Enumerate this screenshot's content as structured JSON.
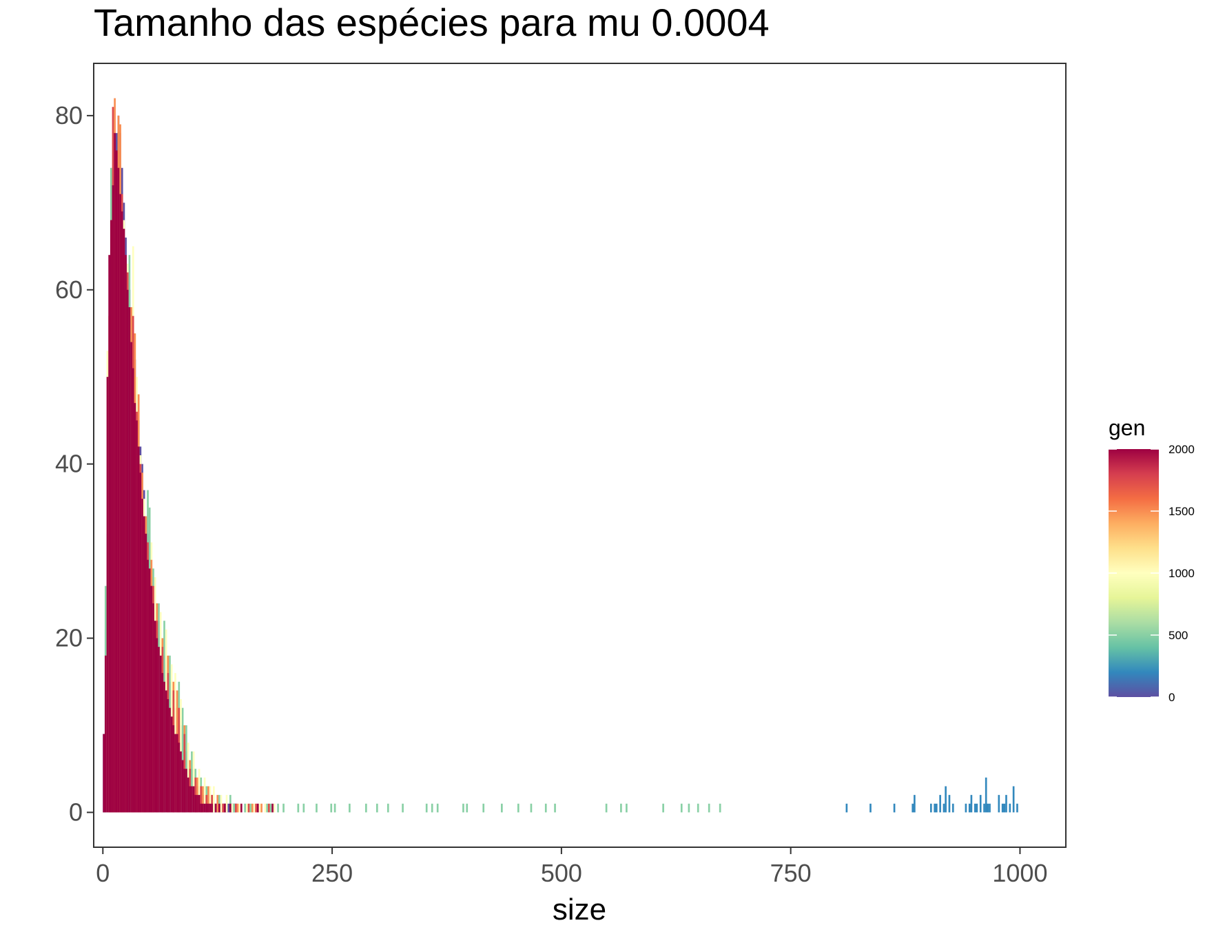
{
  "chart_data": {
    "type": "bar",
    "title": "Tamanho das espécies para mu 0.0004",
    "xlabel": "size",
    "ylabel": "",
    "xlim": [
      -10,
      1050
    ],
    "ylim": [
      -4,
      86
    ],
    "x_ticks": [
      0,
      250,
      500,
      750,
      1000
    ],
    "x_tick_labels": [
      "0",
      "250",
      "500",
      "750",
      "1000"
    ],
    "y_ticks": [
      0,
      20,
      40,
      60,
      80
    ],
    "y_tick_labels": [
      "0",
      "20",
      "40",
      "60",
      "80"
    ],
    "grid": false,
    "bar_width": 2,
    "legend": {
      "title": "gen",
      "type": "colorbar",
      "placement": "right",
      "range": [
        0,
        2000
      ],
      "ticks": [
        0,
        500,
        1000,
        1500,
        2000
      ],
      "tick_labels": [
        "0",
        "500",
        "1000",
        "1500",
        "2000"
      ],
      "palette": [
        "#5E4FA2",
        "#3288BD",
        "#66C2A5",
        "#ABDDA4",
        "#E6F598",
        "#FFFFBF",
        "#FEE08B",
        "#FDAE61",
        "#F46D43",
        "#D53E4F",
        "#9E0142"
      ]
    },
    "series": [
      {
        "gen": 0,
        "points": [
          [
            1,
            9
          ],
          [
            3,
            21
          ],
          [
            5,
            32
          ],
          [
            7,
            45
          ],
          [
            9,
            60
          ],
          [
            11,
            66
          ],
          [
            13,
            72
          ],
          [
            15,
            78
          ],
          [
            17,
            80
          ],
          [
            19,
            78
          ],
          [
            21,
            74
          ],
          [
            23,
            70
          ],
          [
            25,
            66
          ],
          [
            27,
            62
          ],
          [
            29,
            60
          ],
          [
            31,
            58
          ],
          [
            33,
            55
          ],
          [
            35,
            52
          ],
          [
            37,
            48
          ],
          [
            39,
            45
          ],
          [
            41,
            42
          ],
          [
            43,
            40
          ],
          [
            45,
            37
          ],
          [
            47,
            34
          ],
          [
            49,
            32
          ],
          [
            51,
            30
          ],
          [
            53,
            28
          ],
          [
            55,
            27
          ],
          [
            57,
            25
          ],
          [
            59,
            24
          ],
          [
            61,
            22
          ],
          [
            63,
            21
          ],
          [
            65,
            20
          ],
          [
            67,
            18
          ],
          [
            69,
            17
          ],
          [
            71,
            16
          ],
          [
            73,
            15
          ],
          [
            75,
            14
          ],
          [
            77,
            13
          ],
          [
            79,
            12
          ],
          [
            81,
            11
          ],
          [
            83,
            11
          ],
          [
            85,
            10
          ],
          [
            87,
            9
          ],
          [
            89,
            8
          ],
          [
            91,
            7
          ],
          [
            93,
            6
          ],
          [
            95,
            5
          ],
          [
            97,
            5
          ],
          [
            99,
            4
          ],
          [
            101,
            4
          ],
          [
            103,
            3
          ],
          [
            105,
            3
          ],
          [
            107,
            3
          ],
          [
            109,
            2
          ],
          [
            111,
            2
          ],
          [
            113,
            2
          ],
          [
            115,
            2
          ],
          [
            117,
            2
          ],
          [
            119,
            1
          ],
          [
            121,
            1
          ],
          [
            123,
            1
          ],
          [
            125,
            1
          ],
          [
            127,
            1
          ],
          [
            129,
            1
          ],
          [
            131,
            1
          ],
          [
            133,
            1
          ],
          [
            135,
            1
          ],
          [
            137,
            1
          ],
          [
            139,
            1
          ],
          [
            141,
            1
          ],
          [
            143,
            1
          ],
          [
            145,
            1
          ]
        ]
      },
      {
        "gen": 500,
        "points": [
          [
            3,
            26
          ],
          [
            7,
            52
          ],
          [
            9,
            74
          ],
          [
            13,
            73
          ],
          [
            21,
            66
          ],
          [
            29,
            64
          ],
          [
            49,
            37
          ],
          [
            51,
            35
          ],
          [
            55,
            28
          ],
          [
            61,
            24
          ],
          [
            67,
            22
          ],
          [
            73,
            18
          ],
          [
            83,
            15
          ],
          [
            87,
            12
          ],
          [
            91,
            10
          ],
          [
            97,
            7
          ],
          [
            101,
            5
          ],
          [
            107,
            4
          ],
          [
            113,
            3
          ],
          [
            119,
            2
          ],
          [
            127,
            2
          ],
          [
            139,
            2
          ],
          [
            143,
            1
          ],
          [
            155,
            1
          ],
          [
            161,
            1
          ],
          [
            179,
            1
          ],
          [
            183,
            1
          ],
          [
            191,
            1
          ],
          [
            197,
            1
          ],
          [
            213,
            1
          ],
          [
            219,
            1
          ],
          [
            233,
            1
          ],
          [
            249,
            1
          ],
          [
            253,
            1
          ],
          [
            269,
            1
          ],
          [
            287,
            1
          ],
          [
            299,
            1
          ],
          [
            311,
            1
          ],
          [
            327,
            1
          ],
          [
            353,
            1
          ],
          [
            359,
            1
          ],
          [
            365,
            1
          ],
          [
            393,
            1
          ],
          [
            397,
            1
          ],
          [
            415,
            1
          ],
          [
            435,
            1
          ],
          [
            453,
            1
          ],
          [
            467,
            1
          ],
          [
            483,
            1
          ],
          [
            493,
            1
          ],
          [
            549,
            1
          ],
          [
            565,
            1
          ],
          [
            571,
            1
          ],
          [
            611,
            1
          ],
          [
            631,
            1
          ],
          [
            639,
            1
          ],
          [
            649,
            1
          ],
          [
            661,
            1
          ],
          [
            673,
            1
          ]
        ]
      },
      {
        "gen": 1000,
        "points": [
          [
            5,
            53
          ],
          [
            11,
            71
          ],
          [
            15,
            70
          ],
          [
            23,
            68
          ],
          [
            27,
            63
          ],
          [
            33,
            65
          ],
          [
            37,
            50
          ],
          [
            41,
            41
          ],
          [
            45,
            36
          ],
          [
            53,
            31
          ],
          [
            57,
            27
          ],
          [
            63,
            23
          ],
          [
            69,
            21
          ],
          [
            75,
            17
          ],
          [
            79,
            16
          ],
          [
            85,
            13
          ],
          [
            93,
            8
          ],
          [
            99,
            7
          ],
          [
            105,
            5
          ],
          [
            111,
            4
          ],
          [
            117,
            3
          ],
          [
            121,
            3
          ],
          [
            129,
            2
          ],
          [
            135,
            2
          ],
          [
            141,
            1
          ],
          [
            149,
            1
          ],
          [
            157,
            1
          ],
          [
            165,
            1
          ],
          [
            171,
            1
          ],
          [
            177,
            1
          ],
          [
            187,
            1
          ]
        ]
      },
      {
        "gen": 1500,
        "points": [
          [
            7,
            57
          ],
          [
            13,
            82
          ],
          [
            17,
            80
          ],
          [
            19,
            79
          ],
          [
            25,
            60
          ],
          [
            31,
            58
          ],
          [
            35,
            55
          ],
          [
            39,
            48
          ],
          [
            43,
            39
          ],
          [
            47,
            34
          ],
          [
            53,
            29
          ],
          [
            59,
            24
          ],
          [
            65,
            20
          ],
          [
            71,
            18
          ],
          [
            77,
            15
          ],
          [
            81,
            14
          ],
          [
            89,
            10
          ],
          [
            95,
            6
          ],
          [
            103,
            4
          ],
          [
            109,
            3
          ],
          [
            115,
            3
          ],
          [
            125,
            2
          ],
          [
            133,
            1
          ],
          [
            147,
            1
          ],
          [
            163,
            1
          ],
          [
            173,
            1
          ]
        ]
      },
      {
        "gen": 1750,
        "points": [
          [
            9,
            68
          ],
          [
            11,
            81
          ],
          [
            15,
            76
          ],
          [
            21,
            71
          ],
          [
            23,
            67
          ],
          [
            27,
            62
          ],
          [
            33,
            57
          ],
          [
            37,
            46
          ],
          [
            41,
            40
          ],
          [
            45,
            33
          ],
          [
            49,
            31
          ],
          [
            55,
            26
          ],
          [
            59,
            22
          ],
          [
            65,
            19
          ],
          [
            71,
            16
          ],
          [
            77,
            14
          ],
          [
            83,
            12
          ],
          [
            89,
            9
          ],
          [
            95,
            5
          ],
          [
            101,
            4
          ],
          [
            107,
            3
          ],
          [
            113,
            2
          ],
          [
            119,
            2
          ],
          [
            131,
            1
          ],
          [
            145,
            1
          ],
          [
            159,
            1
          ],
          [
            167,
            1
          ],
          [
            181,
            1
          ]
        ]
      },
      {
        "gen": 2000,
        "points": [
          [
            1,
            9
          ],
          [
            3,
            18
          ],
          [
            5,
            50
          ],
          [
            7,
            64
          ],
          [
            9,
            68
          ],
          [
            11,
            72
          ],
          [
            13,
            78
          ],
          [
            15,
            76
          ],
          [
            17,
            74
          ],
          [
            19,
            71
          ],
          [
            21,
            69
          ],
          [
            23,
            67
          ],
          [
            25,
            64
          ],
          [
            27,
            60
          ],
          [
            29,
            58
          ],
          [
            31,
            54
          ],
          [
            33,
            51
          ],
          [
            35,
            47
          ],
          [
            37,
            45
          ],
          [
            39,
            42
          ],
          [
            41,
            39
          ],
          [
            43,
            36
          ],
          [
            45,
            34
          ],
          [
            47,
            32
          ],
          [
            49,
            29
          ],
          [
            51,
            28
          ],
          [
            53,
            26
          ],
          [
            55,
            24
          ],
          [
            57,
            22
          ],
          [
            59,
            20
          ],
          [
            61,
            19
          ],
          [
            63,
            18
          ],
          [
            65,
            16
          ],
          [
            67,
            15
          ],
          [
            69,
            14
          ],
          [
            71,
            13
          ],
          [
            73,
            12
          ],
          [
            75,
            11
          ],
          [
            77,
            10
          ],
          [
            79,
            9
          ],
          [
            81,
            9
          ],
          [
            83,
            8
          ],
          [
            85,
            7
          ],
          [
            87,
            6
          ],
          [
            89,
            5
          ],
          [
            91,
            5
          ],
          [
            93,
            4
          ],
          [
            95,
            3
          ],
          [
            97,
            3
          ],
          [
            99,
            3
          ],
          [
            101,
            2
          ],
          [
            103,
            2
          ],
          [
            105,
            2
          ],
          [
            107,
            1
          ],
          [
            109,
            1
          ],
          [
            111,
            1
          ],
          [
            113,
            1
          ],
          [
            115,
            1
          ],
          [
            117,
            1
          ],
          [
            119,
            1
          ],
          [
            123,
            1
          ],
          [
            127,
            1
          ],
          [
            133,
            1
          ],
          [
            139,
            1
          ],
          [
            151,
            1
          ],
          [
            169,
            1
          ],
          [
            185,
            1
          ]
        ]
      },
      {
        "gen": 200,
        "points": [
          [
            811,
            1
          ],
          [
            837,
            1
          ],
          [
            863,
            1
          ],
          [
            883,
            1
          ],
          [
            885,
            2
          ],
          [
            903,
            1
          ],
          [
            907,
            1
          ],
          [
            909,
            1
          ],
          [
            913,
            2
          ],
          [
            917,
            1
          ],
          [
            919,
            3
          ],
          [
            923,
            2
          ],
          [
            927,
            1
          ],
          [
            941,
            1
          ],
          [
            945,
            1
          ],
          [
            947,
            2
          ],
          [
            951,
            1
          ],
          [
            953,
            1
          ],
          [
            957,
            2
          ],
          [
            961,
            1
          ],
          [
            963,
            4
          ],
          [
            965,
            1
          ],
          [
            967,
            1
          ],
          [
            977,
            2
          ],
          [
            981,
            1
          ],
          [
            983,
            1
          ],
          [
            985,
            2
          ],
          [
            989,
            1
          ],
          [
            993,
            3
          ],
          [
            997,
            1
          ]
        ]
      }
    ]
  }
}
